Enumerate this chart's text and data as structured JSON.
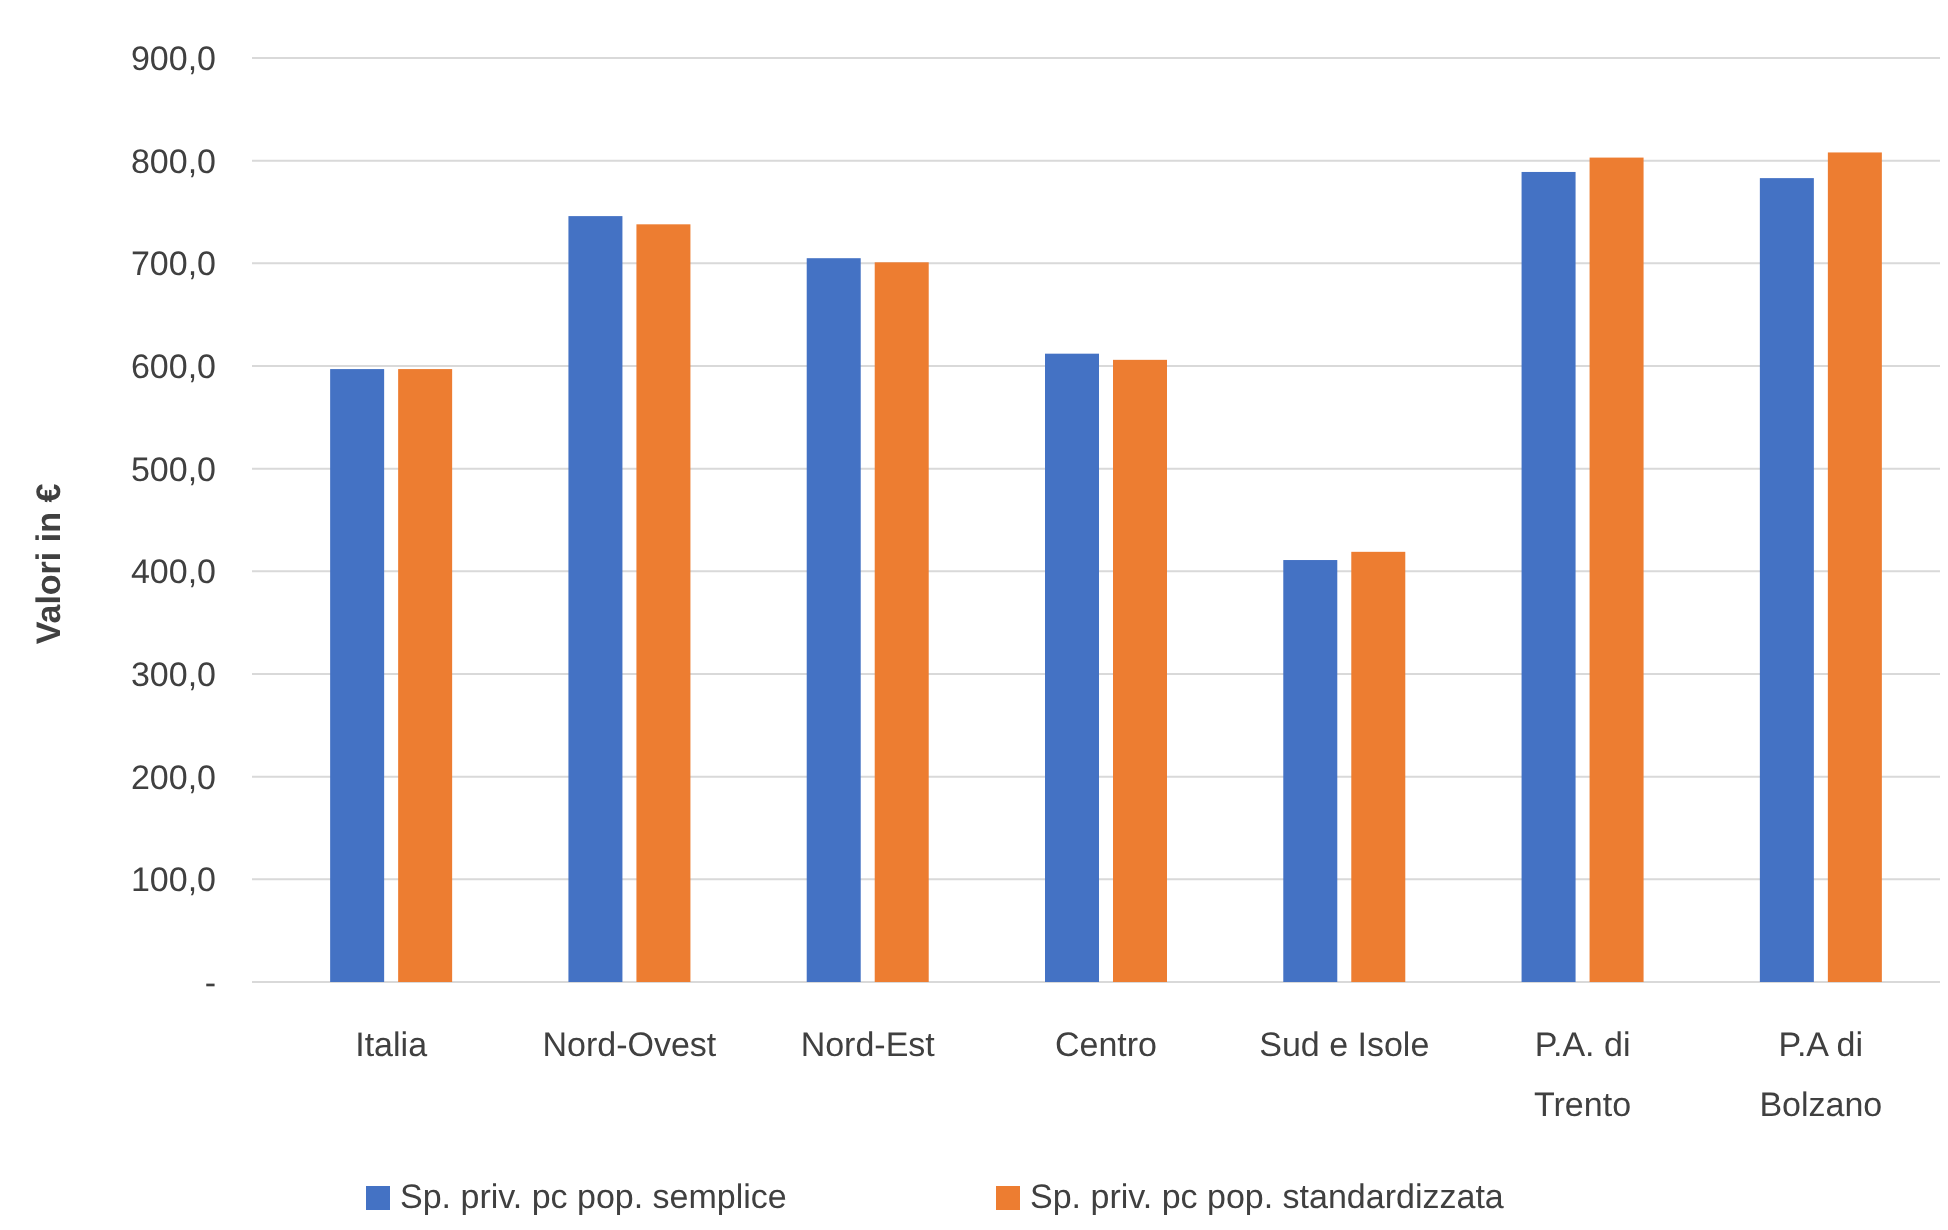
{
  "chart_data": {
    "type": "bar",
    "ylabel": "Valori in €",
    "categories": [
      "Italia",
      "Nord-Ovest",
      "Nord-Est",
      "Centro",
      "Sud e Isole",
      "P.A. di Trento",
      "P.A di Bolzano"
    ],
    "series": [
      {
        "name": "Sp. priv. pc pop. semplice",
        "color": "#4472c4",
        "values": [
          597,
          746,
          705,
          612,
          411,
          789,
          783
        ]
      },
      {
        "name": "Sp. priv. pc pop. standardizzata",
        "color": "#ed7d31",
        "values": [
          597,
          738,
          701,
          606,
          419,
          803,
          808
        ]
      }
    ],
    "ylim": [
      0,
      900
    ],
    "yticks": [
      {
        "value": 0,
        "label": "-"
      },
      {
        "value": 100,
        "label": "100,0"
      },
      {
        "value": 200,
        "label": "200,0"
      },
      {
        "value": 300,
        "label": "300,0"
      },
      {
        "value": 400,
        "label": "400,0"
      },
      {
        "value": 500,
        "label": "500,0"
      },
      {
        "value": 600,
        "label": "600,0"
      },
      {
        "value": 700,
        "label": "700,0"
      },
      {
        "value": 800,
        "label": "800,0"
      },
      {
        "value": 900,
        "label": "900,0"
      }
    ],
    "grid": "y",
    "legend": "bottom"
  }
}
